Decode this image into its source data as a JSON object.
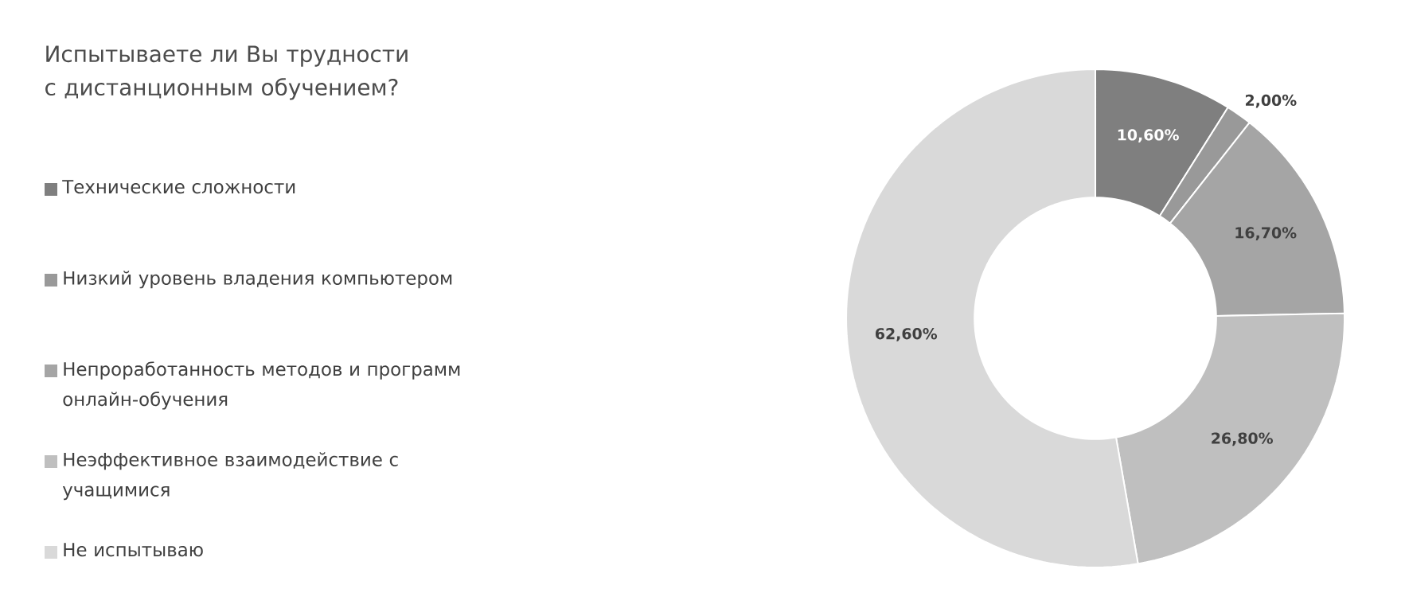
{
  "chart_data": {
    "type": "donut",
    "title": "Испытываете ли Вы трудности с дистанционным обучением?",
    "categories": [
      "Технические сложности",
      "Низкий уровень владения компьютером",
      "Непроработанность методов и программ онлайн-обучения",
      "Неэффективное взаимодействие с учащимися",
      "Не испытываю"
    ],
    "values": [
      10.6,
      2.0,
      16.7,
      26.8,
      62.6
    ],
    "value_labels": [
      "10,60%",
      "2,00%",
      "16,70%",
      "26,80%",
      "62,60%"
    ],
    "colors": [
      "#7f7f7f",
      "#999999",
      "#a5a5a5",
      "#bfbfbf",
      "#d9d9d9"
    ],
    "legend": "left"
  }
}
